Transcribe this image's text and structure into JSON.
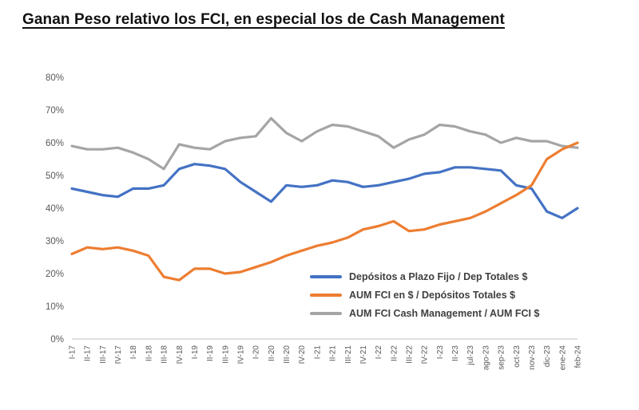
{
  "title": "Ganan Peso relativo los FCI, en especial los de Cash Management",
  "chart_data": {
    "type": "line",
    "title": "Ganan Peso relativo los FCI, en especial los de Cash Management",
    "xlabel": "",
    "ylabel": "",
    "ylim": [
      0,
      80
    ],
    "ytick_step": 10,
    "ytick_format": "percent",
    "grid": false,
    "legend_position": "inside-bottom-right",
    "categories": [
      "I-17",
      "II-17",
      "III-17",
      "IV-17",
      "I-18",
      "II-18",
      "III-18",
      "IV-18",
      "I-19",
      "II-19",
      "III-19",
      "IV-19",
      "I-20",
      "II-20",
      "III-20",
      "IV-20",
      "I-21",
      "II-21",
      "III-21",
      "IV-21",
      "I-22",
      "II-22",
      "III-22",
      "IV-22",
      "I-23",
      "II-23",
      "jul-23",
      "ago-23",
      "sep-23",
      "oct-23",
      "nov-23",
      "dic-23",
      "ene-24",
      "feb-24"
    ],
    "series": [
      {
        "name": "Depósitos a Plazo Fijo / Dep Totales $",
        "color": "#4472C4",
        "values": [
          46,
          45,
          44,
          43.5,
          46,
          46,
          47,
          52,
          53.5,
          53,
          52,
          48,
          45,
          42,
          47,
          46.5,
          47,
          48.5,
          48,
          46.5,
          47,
          48,
          49,
          50.5,
          51,
          52.5,
          52.5,
          52,
          51.5,
          47,
          46,
          39,
          37,
          40
        ]
      },
      {
        "name": "AUM FCI en $ / Depósitos Totales $",
        "color": "#ED7D31",
        "values": [
          26,
          28,
          27.5,
          28,
          27,
          25.5,
          19,
          18,
          21.5,
          21.5,
          20,
          20.5,
          22,
          23.5,
          25.5,
          27,
          28.5,
          29.5,
          31,
          33.5,
          34.5,
          36,
          33,
          33.5,
          35,
          36,
          37,
          39,
          41.5,
          44,
          47,
          55,
          58,
          60
        ]
      },
      {
        "name": "AUM FCI Cash Management / AUM FCI $",
        "color": "#A5A5A5",
        "values": [
          59,
          58,
          58,
          58.5,
          57,
          55,
          52,
          59.5,
          58.5,
          58,
          60.5,
          61.5,
          62,
          67.5,
          63,
          60.5,
          63.5,
          65.5,
          65,
          63.5,
          62,
          58.5,
          61,
          62.5,
          65.5,
          65,
          63.5,
          62.5,
          60,
          61.5,
          60.5,
          60.5,
          59,
          58.5
        ]
      }
    ],
    "axis_color": "#BFBFBF",
    "tick_label_color": "#595959"
  }
}
